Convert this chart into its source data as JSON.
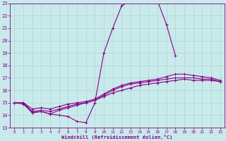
{
  "xlabel": "Windchill (Refroidissement éolien,°C)",
  "background_color": "#c8eaea",
  "grid_color": "#b0d4d4",
  "line_color": "#880088",
  "xlim_min": -0.5,
  "xlim_max": 23.5,
  "ylim_min": 13,
  "ylim_max": 23,
  "yticks": [
    13,
    14,
    15,
    16,
    17,
    18,
    19,
    20,
    21,
    22,
    23
  ],
  "xticks": [
    0,
    1,
    2,
    3,
    4,
    5,
    6,
    7,
    8,
    9,
    10,
    11,
    12,
    13,
    14,
    15,
    16,
    17,
    18,
    19,
    20,
    21,
    22,
    23
  ],
  "line1_x": [
    0,
    1,
    2,
    3,
    4,
    5,
    6,
    7,
    8,
    9,
    10,
    11,
    12,
    13,
    14,
    15,
    16,
    17,
    18
  ],
  "line1_y": [
    15.0,
    14.9,
    14.2,
    14.3,
    14.1,
    14.0,
    13.9,
    13.5,
    13.4,
    15.0,
    19.0,
    21.0,
    22.8,
    23.2,
    23.3,
    23.4,
    23.2,
    21.3,
    18.8
  ],
  "line2_x": [
    0,
    1,
    2,
    3,
    4,
    5,
    6,
    7,
    8,
    9,
    10,
    11,
    12,
    13,
    14,
    15,
    16,
    17,
    18,
    19,
    20,
    21,
    22,
    23
  ],
  "line2_y": [
    15.0,
    15.0,
    14.2,
    14.3,
    14.1,
    14.4,
    14.6,
    14.8,
    15.0,
    15.2,
    15.5,
    15.8,
    16.0,
    16.2,
    16.4,
    16.5,
    16.6,
    16.7,
    16.8,
    16.9,
    16.8,
    16.8,
    16.8,
    16.7
  ],
  "line3_x": [
    0,
    1,
    2,
    3,
    4,
    5,
    6,
    7,
    8,
    9,
    10,
    11,
    12,
    13,
    14,
    15,
    16,
    17,
    18,
    19,
    20,
    21,
    22,
    23
  ],
  "line3_y": [
    15.0,
    15.0,
    14.3,
    14.4,
    14.3,
    14.5,
    14.7,
    14.9,
    15.0,
    15.2,
    15.6,
    16.0,
    16.3,
    16.5,
    16.6,
    16.7,
    16.8,
    16.9,
    17.0,
    17.0,
    17.0,
    16.9,
    16.9,
    16.7
  ],
  "line4_x": [
    0,
    1,
    2,
    3,
    4,
    5,
    6,
    7,
    8,
    9,
    10,
    11,
    12,
    13,
    14,
    15,
    16,
    17,
    18,
    19,
    20,
    21,
    22,
    23
  ],
  "line4_y": [
    15.0,
    15.0,
    14.5,
    14.6,
    14.5,
    14.7,
    14.9,
    15.0,
    15.1,
    15.3,
    15.7,
    16.1,
    16.4,
    16.6,
    16.7,
    16.8,
    16.9,
    17.1,
    17.3,
    17.3,
    17.2,
    17.1,
    17.0,
    16.8
  ],
  "tick_fontsize": 5,
  "xlabel_fontsize": 5,
  "marker_size": 2.5,
  "linewidth": 0.8
}
